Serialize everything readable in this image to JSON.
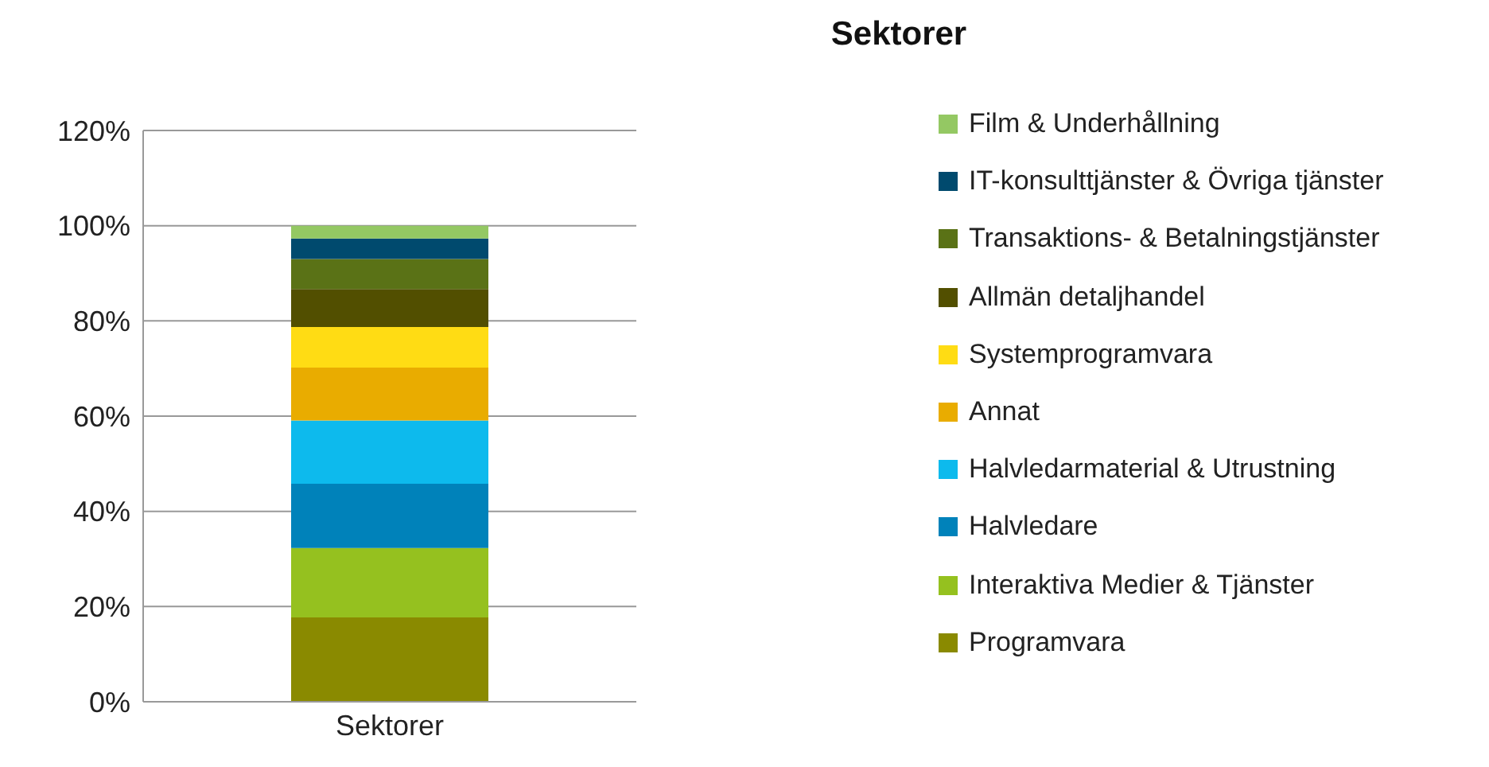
{
  "chart_data": {
    "type": "bar",
    "title": "Sektorer",
    "stacked": true,
    "categories": [
      "Sektorer"
    ],
    "series": [
      {
        "name": "Programvara",
        "color": "#8a8a00",
        "values": [
          17.7
        ]
      },
      {
        "name": "Interaktiva Medier & Tjänster",
        "color": "#95c11f",
        "values": [
          14.6
        ]
      },
      {
        "name": "Halvledare",
        "color": "#0082ba",
        "values": [
          13.5
        ]
      },
      {
        "name": "Halvledarmaterial & Utrustning",
        "color": "#0dbaed",
        "values": [
          13.3
        ]
      },
      {
        "name": "Annat",
        "color": "#e9ac00",
        "values": [
          11.1
        ]
      },
      {
        "name": "Systemprogramvara",
        "color": "#ffdc14",
        "values": [
          8.5
        ]
      },
      {
        "name": "Allmän detaljhandel",
        "color": "#524f00",
        "values": [
          8.0
        ]
      },
      {
        "name": "Transaktions- & Betalningstjänster",
        "color": "#5a7216",
        "values": [
          6.3
        ]
      },
      {
        "name": "IT-konsulttjänster & Övriga tjänster",
        "color": "#004a6e",
        "values": [
          4.3
        ]
      },
      {
        "name": "Film & Underhållning",
        "color": "#94c863",
        "values": [
          2.7
        ]
      }
    ],
    "ylim": [
      0,
      120
    ],
    "yticks": [
      {
        "value": 0,
        "label": "0%"
      },
      {
        "value": 20,
        "label": "20%"
      },
      {
        "value": 40,
        "label": "40%"
      },
      {
        "value": 60,
        "label": "60%"
      },
      {
        "value": 80,
        "label": "80%"
      },
      {
        "value": 100,
        "label": "100%"
      },
      {
        "value": 120,
        "label": "120%"
      }
    ],
    "grid": "y",
    "legend": "right"
  }
}
